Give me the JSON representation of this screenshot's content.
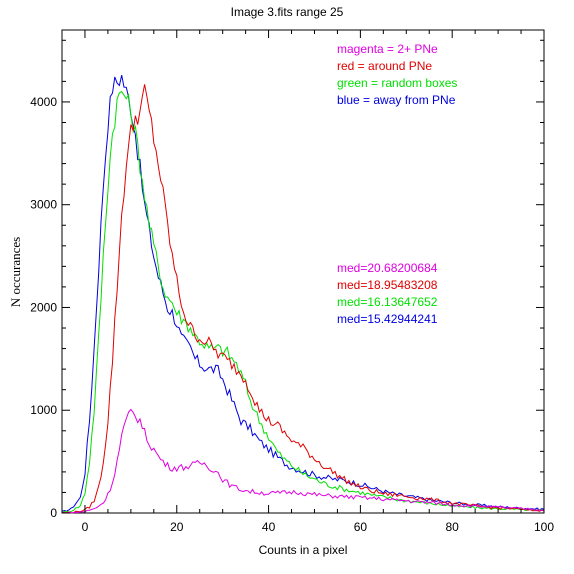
{
  "chart_data": {
    "type": "line",
    "title": "Image 3.fits   range 25",
    "xlabel": "Counts in a pixel",
    "ylabel": "N occurances",
    "xlim": [
      -5,
      100
    ],
    "ylim": [
      0,
      4700
    ],
    "x_ticks": [
      0,
      20,
      40,
      60,
      80,
      100
    ],
    "y_ticks": [
      0,
      1000,
      2000,
      3000,
      4000
    ],
    "grid": false,
    "legend": [
      {
        "text": "magenta = 2+ PNe",
        "color": "#e000e0"
      },
      {
        "text": "red = around PNe",
        "color": "#e00000"
      },
      {
        "text": "green = random boxes",
        "color": "#00e000"
      },
      {
        "text": "blue = away from PNe",
        "color": "#0000e0"
      }
    ],
    "annotations": [
      {
        "text": "med=20.68200684",
        "color": "#e000e0"
      },
      {
        "text": "med=18.95483208",
        "color": "#e00000"
      },
      {
        "text": "med=16.13647652",
        "color": "#00e000"
      },
      {
        "text": "med=15.42944241",
        "color": "#0000e0"
      }
    ],
    "series": [
      {
        "color": "#0000e0",
        "points": [
          [
            -5,
            10
          ],
          [
            -3,
            40
          ],
          [
            -1,
            150
          ],
          [
            0,
            400
          ],
          [
            1,
            900
          ],
          [
            2,
            1600
          ],
          [
            3,
            2400
          ],
          [
            4,
            3200
          ],
          [
            5,
            3800
          ],
          [
            6,
            4150
          ],
          [
            7,
            4200
          ],
          [
            8,
            4250
          ],
          [
            9,
            4100
          ],
          [
            10,
            3950
          ],
          [
            11,
            3700
          ],
          [
            12,
            3350
          ],
          [
            13,
            3000
          ],
          [
            14,
            2750
          ],
          [
            15,
            2500
          ],
          [
            16,
            2300
          ],
          [
            17,
            2150
          ],
          [
            18,
            2000
          ],
          [
            19,
            1950
          ],
          [
            20,
            1850
          ],
          [
            21,
            1700
          ],
          [
            22,
            1650
          ],
          [
            23,
            1600
          ],
          [
            24,
            1500
          ],
          [
            25,
            1450
          ],
          [
            26,
            1420
          ],
          [
            27,
            1400
          ],
          [
            28,
            1400
          ],
          [
            29,
            1380
          ],
          [
            30,
            1300
          ],
          [
            32,
            1100
          ],
          [
            34,
            900
          ],
          [
            36,
            820
          ],
          [
            38,
            700
          ],
          [
            40,
            620
          ],
          [
            42,
            540
          ],
          [
            44,
            470
          ],
          [
            46,
            430
          ],
          [
            48,
            400
          ],
          [
            50,
            370
          ],
          [
            52,
            350
          ],
          [
            54,
            330
          ],
          [
            56,
            320
          ],
          [
            58,
            300
          ],
          [
            60,
            280
          ],
          [
            62,
            250
          ],
          [
            64,
            225
          ],
          [
            66,
            200
          ],
          [
            68,
            180
          ],
          [
            70,
            165
          ],
          [
            72,
            150
          ],
          [
            74,
            135
          ],
          [
            76,
            120
          ],
          [
            78,
            110
          ],
          [
            80,
            100
          ],
          [
            82,
            90
          ],
          [
            84,
            80
          ],
          [
            86,
            75
          ],
          [
            88,
            70
          ],
          [
            90,
            60
          ],
          [
            92,
            55
          ],
          [
            94,
            50
          ],
          [
            96,
            45
          ],
          [
            98,
            40
          ],
          [
            100,
            38
          ]
        ]
      },
      {
        "color": "#00e000",
        "points": [
          [
            -5,
            5
          ],
          [
            -3,
            20
          ],
          [
            -1,
            70
          ],
          [
            0,
            200
          ],
          [
            1,
            500
          ],
          [
            2,
            1000
          ],
          [
            3,
            1700
          ],
          [
            4,
            2500
          ],
          [
            5,
            3200
          ],
          [
            6,
            3700
          ],
          [
            7,
            4000
          ],
          [
            8,
            4100
          ],
          [
            9,
            4050
          ],
          [
            10,
            3900
          ],
          [
            11,
            3700
          ],
          [
            12,
            3400
          ],
          [
            13,
            3100
          ],
          [
            14,
            2800
          ],
          [
            15,
            2600
          ],
          [
            16,
            2400
          ],
          [
            17,
            2200
          ],
          [
            18,
            2100
          ],
          [
            19,
            2050
          ],
          [
            20,
            1950
          ],
          [
            21,
            1900
          ],
          [
            22,
            1850
          ],
          [
            23,
            1800
          ],
          [
            24,
            1720
          ],
          [
            25,
            1680
          ],
          [
            26,
            1640
          ],
          [
            27,
            1600
          ],
          [
            28,
            1600
          ],
          [
            29,
            1600
          ],
          [
            30,
            1580
          ],
          [
            31,
            1560
          ],
          [
            32,
            1500
          ],
          [
            33,
            1450
          ],
          [
            34,
            1350
          ],
          [
            35,
            1250
          ],
          [
            36,
            1100
          ],
          [
            38,
            900
          ],
          [
            40,
            740
          ],
          [
            42,
            590
          ],
          [
            44,
            500
          ],
          [
            46,
            430
          ],
          [
            48,
            370
          ],
          [
            50,
            330
          ],
          [
            52,
            290
          ],
          [
            54,
            260
          ],
          [
            56,
            240
          ],
          [
            58,
            215
          ],
          [
            60,
            200
          ],
          [
            62,
            180
          ],
          [
            64,
            160
          ],
          [
            66,
            150
          ],
          [
            68,
            130
          ],
          [
            70,
            120
          ],
          [
            72,
            110
          ],
          [
            74,
            100
          ],
          [
            76,
            90
          ],
          [
            78,
            80
          ],
          [
            80,
            70
          ],
          [
            82,
            60
          ],
          [
            84,
            55
          ],
          [
            86,
            50
          ],
          [
            88,
            45
          ],
          [
            90,
            42
          ],
          [
            92,
            40
          ],
          [
            94,
            35
          ],
          [
            96,
            30
          ],
          [
            98,
            28
          ],
          [
            100,
            25
          ]
        ]
      },
      {
        "color": "#e00000",
        "points": [
          [
            -5,
            2
          ],
          [
            -2,
            10
          ],
          [
            0,
            30
          ],
          [
            1,
            60
          ],
          [
            2,
            120
          ],
          [
            3,
            250
          ],
          [
            4,
            500
          ],
          [
            5,
            900
          ],
          [
            6,
            1500
          ],
          [
            7,
            2200
          ],
          [
            8,
            2900
          ],
          [
            9,
            3400
          ],
          [
            10,
            3700
          ],
          [
            11,
            3850
          ],
          [
            12,
            3900
          ],
          [
            13,
            4100
          ],
          [
            14,
            3900
          ],
          [
            15,
            3650
          ],
          [
            16,
            3400
          ],
          [
            17,
            3100
          ],
          [
            18,
            2800
          ],
          [
            19,
            2500
          ],
          [
            20,
            2250
          ],
          [
            21,
            2050
          ],
          [
            22,
            1900
          ],
          [
            23,
            1800
          ],
          [
            24,
            1750
          ],
          [
            25,
            1700
          ],
          [
            26,
            1680
          ],
          [
            27,
            1650
          ],
          [
            28,
            1600
          ],
          [
            29,
            1550
          ],
          [
            30,
            1520
          ],
          [
            31,
            1480
          ],
          [
            32,
            1450
          ],
          [
            33,
            1400
          ],
          [
            34,
            1350
          ],
          [
            35,
            1300
          ],
          [
            36,
            1200
          ],
          [
            37,
            1100
          ],
          [
            38,
            1000
          ],
          [
            39,
            950
          ],
          [
            40,
            900
          ],
          [
            42,
            850
          ],
          [
            44,
            750
          ],
          [
            46,
            680
          ],
          [
            48,
            620
          ],
          [
            50,
            530
          ],
          [
            52,
            460
          ],
          [
            54,
            400
          ],
          [
            56,
            340
          ],
          [
            58,
            290
          ],
          [
            60,
            250
          ],
          [
            62,
            220
          ],
          [
            64,
            200
          ],
          [
            66,
            180
          ],
          [
            68,
            175
          ],
          [
            70,
            160
          ],
          [
            72,
            150
          ],
          [
            74,
            140
          ],
          [
            76,
            125
          ],
          [
            78,
            110
          ],
          [
            80,
            95
          ],
          [
            82,
            85
          ],
          [
            84,
            75
          ],
          [
            86,
            65
          ],
          [
            88,
            55
          ],
          [
            90,
            50
          ],
          [
            92,
            45
          ],
          [
            94,
            40
          ],
          [
            96,
            30
          ],
          [
            98,
            25
          ],
          [
            100,
            20
          ]
        ]
      },
      {
        "color": "#e000e0",
        "points": [
          [
            -5,
            0
          ],
          [
            -2,
            5
          ],
          [
            0,
            15
          ],
          [
            2,
            40
          ],
          [
            4,
            100
          ],
          [
            5,
            180
          ],
          [
            6,
            300
          ],
          [
            7,
            500
          ],
          [
            8,
            750
          ],
          [
            9,
            900
          ],
          [
            10,
            980
          ],
          [
            11,
            950
          ],
          [
            12,
            900
          ],
          [
            13,
            780
          ],
          [
            14,
            680
          ],
          [
            15,
            620
          ],
          [
            16,
            550
          ],
          [
            17,
            500
          ],
          [
            18,
            460
          ],
          [
            19,
            440
          ],
          [
            20,
            440
          ],
          [
            22,
            450
          ],
          [
            24,
            470
          ],
          [
            25,
            490
          ],
          [
            26,
            480
          ],
          [
            27,
            450
          ],
          [
            28,
            420
          ],
          [
            29,
            390
          ],
          [
            30,
            330
          ],
          [
            32,
            260
          ],
          [
            34,
            230
          ],
          [
            36,
            210
          ],
          [
            38,
            200
          ],
          [
            40,
            190
          ],
          [
            42,
            195
          ],
          [
            44,
            200
          ],
          [
            46,
            205
          ],
          [
            48,
            190
          ],
          [
            50,
            180
          ],
          [
            52,
            170
          ],
          [
            54,
            165
          ],
          [
            56,
            160
          ],
          [
            58,
            155
          ],
          [
            60,
            150
          ],
          [
            62,
            145
          ],
          [
            64,
            140
          ],
          [
            66,
            130
          ],
          [
            68,
            125
          ],
          [
            70,
            120
          ],
          [
            72,
            110
          ],
          [
            74,
            105
          ],
          [
            76,
            100
          ],
          [
            78,
            90
          ],
          [
            80,
            80
          ],
          [
            82,
            75
          ],
          [
            84,
            70
          ],
          [
            86,
            65
          ],
          [
            88,
            60
          ],
          [
            90,
            55
          ],
          [
            92,
            50
          ],
          [
            94,
            45
          ],
          [
            96,
            40
          ],
          [
            98,
            35
          ],
          [
            100,
            30
          ]
        ]
      }
    ]
  }
}
